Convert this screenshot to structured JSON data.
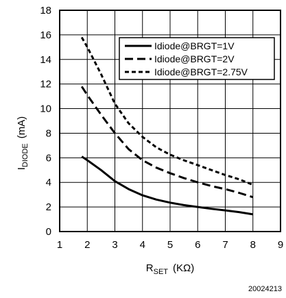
{
  "chart_data": {
    "type": "line",
    "title": "",
    "xlabel": {
      "main": "R",
      "sub": "SET",
      "unit": "(KΩ)"
    },
    "ylabel": {
      "main": "I",
      "sub": "DIODE",
      "unit": "(mA)"
    },
    "xlim": [
      1,
      9
    ],
    "ylim": [
      0,
      18
    ],
    "x_ticks": [
      "1",
      "2",
      "3",
      "4",
      "5",
      "6",
      "7",
      "8",
      "9"
    ],
    "y_ticks": [
      "0",
      "2",
      "4",
      "6",
      "8",
      "10",
      "12",
      "14",
      "16",
      "18"
    ],
    "grid": true,
    "legend_position": "top-right",
    "series": [
      {
        "name": "Idiode@BRGT=1V",
        "style": "solid",
        "x": [
          1.8,
          2.0,
          2.5,
          3.0,
          3.5,
          4.0,
          4.5,
          5.0,
          5.5,
          6.0,
          6.5,
          7.0,
          7.5,
          8.0
        ],
        "y": [
          6.1,
          5.8,
          5.0,
          4.1,
          3.45,
          2.95,
          2.6,
          2.35,
          2.15,
          2.0,
          1.85,
          1.72,
          1.58,
          1.4
        ]
      },
      {
        "name": "Idiode@BRGT=2V",
        "style": "dashed",
        "x": [
          1.8,
          2.0,
          2.5,
          3.0,
          3.5,
          4.0,
          4.5,
          5.0,
          5.5,
          6.0,
          6.5,
          7.0,
          7.5,
          8.0
        ],
        "y": [
          11.8,
          11.1,
          9.5,
          8.0,
          6.7,
          5.8,
          5.2,
          4.75,
          4.35,
          4.0,
          3.7,
          3.45,
          3.15,
          2.8
        ]
      },
      {
        "name": "Idiode@BRGT=2.75V",
        "style": "dotted",
        "x": [
          1.8,
          2.0,
          2.5,
          3.0,
          3.5,
          4.0,
          4.5,
          5.0,
          5.5,
          6.0,
          6.5,
          7.0,
          7.5,
          8.0
        ],
        "y": [
          15.8,
          15.0,
          12.8,
          10.4,
          8.8,
          7.7,
          6.85,
          6.25,
          5.8,
          5.4,
          5.0,
          4.6,
          4.25,
          3.8
        ]
      }
    ]
  },
  "figure_id": "20024213"
}
